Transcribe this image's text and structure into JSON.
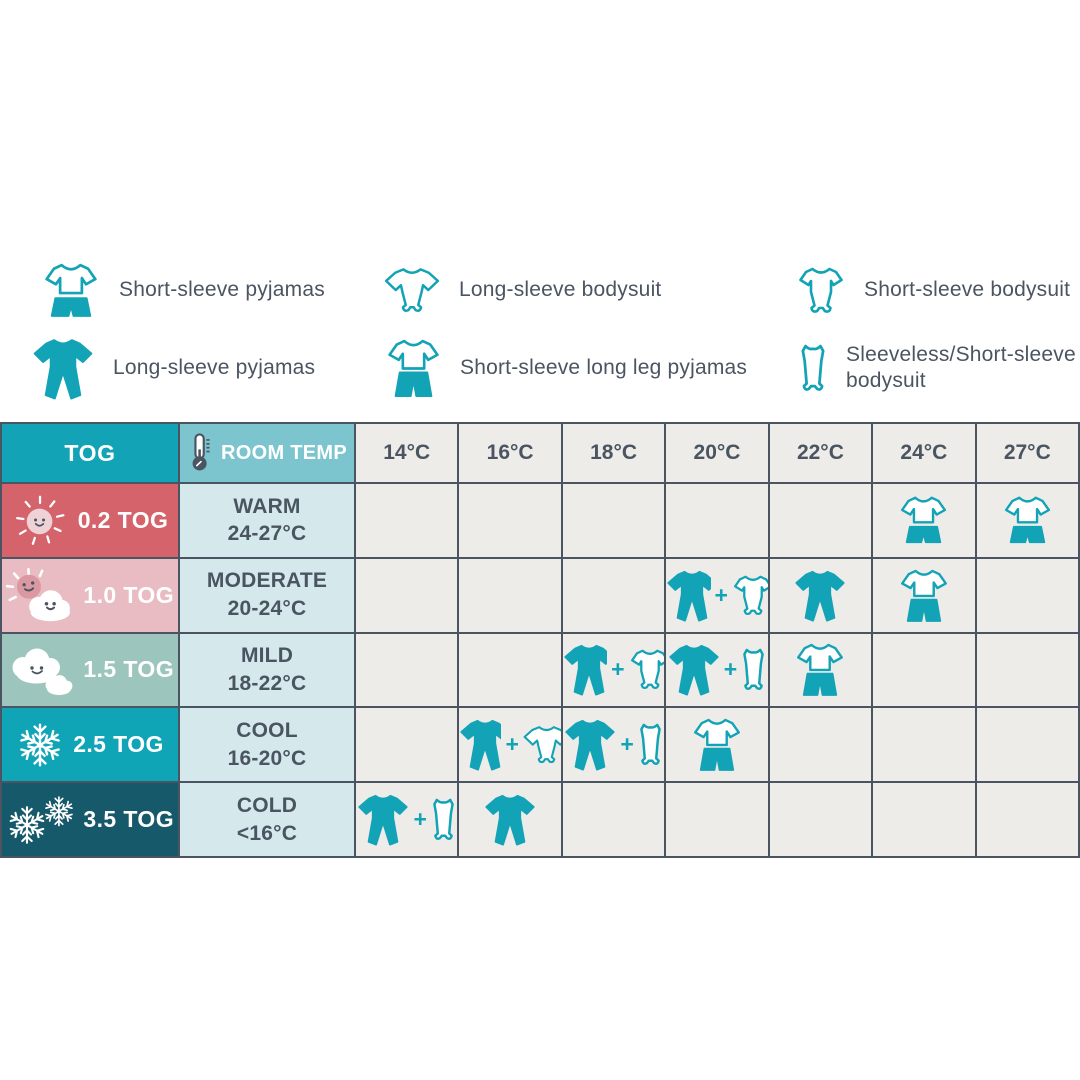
{
  "colors": {
    "teal": "#12a3b6",
    "dark_slate": "#4a5561",
    "text": "#4b5562",
    "cell_bg": "#edece8",
    "room_cell_bg": "#d5e9ed",
    "room_header_bg": "#7cc5cf",
    "tog_header_bg": "#12a3b6",
    "row_02_bg": "#d5636b",
    "row_10_bg": "#e8bcc2",
    "row_15_bg": "#9cc5bd",
    "row_25_bg": "#10a4b7",
    "row_35_bg": "#15596a",
    "sun_light": "#eed2d6",
    "sun_deep": "#db98a3"
  },
  "legend": {
    "items": [
      {
        "icon": "short-sleeve-pyjamas",
        "label": "Short-sleeve pyjamas"
      },
      {
        "icon": "long-sleeve-bodysuit",
        "label": "Long-sleeve bodysuit"
      },
      {
        "icon": "short-sleeve-bodysuit",
        "label": "Short-sleeve bodysuit"
      },
      {
        "icon": "long-sleeve-pyjamas",
        "label": "Long-sleeve pyjamas"
      },
      {
        "icon": "short-sleeve-long-leg-pyjamas",
        "label": "Short-sleeve long leg pyjamas"
      },
      {
        "icon": "sleeveless-bodysuit",
        "label": "Sleeveless/Short-sleeve bodysuit"
      }
    ]
  },
  "table": {
    "tog_header": "TOG",
    "room_temp_header": "ROOM TEMP",
    "plus": "+",
    "temp_columns": [
      "14°C",
      "16°C",
      "18°C",
      "20°C",
      "22°C",
      "24°C",
      "27°C"
    ],
    "rows": [
      {
        "tog": "0.2 TOG",
        "weather": "sun",
        "bg": "#d5636b",
        "room": [
          "WARM",
          "24-27°C"
        ],
        "cells": [
          [],
          [],
          [],
          [],
          [],
          [
            "short-sleeve-pyjamas"
          ],
          [
            "short-sleeve-pyjamas"
          ]
        ]
      },
      {
        "tog": "1.0 TOG",
        "weather": "sun-cloud",
        "bg": "#e8bcc2",
        "room": [
          "MODERATE",
          "20-24°C"
        ],
        "cells": [
          [],
          [],
          [],
          [
            "long-sleeve-pyjamas",
            "short-sleeve-bodysuit"
          ],
          [
            "long-sleeve-pyjamas"
          ],
          [
            "short-sleeve-long-leg-pyjamas"
          ],
          []
        ]
      },
      {
        "tog": "1.5 TOG",
        "weather": "clouds",
        "bg": "#9cc5bd",
        "room": [
          "MILD",
          "18-22°C"
        ],
        "cells": [
          [],
          [],
          [
            "long-sleeve-pyjamas",
            "short-sleeve-bodysuit"
          ],
          [
            "long-sleeve-pyjamas",
            "sleeveless-bodysuit"
          ],
          [
            "short-sleeve-long-leg-pyjamas"
          ],
          [],
          []
        ]
      },
      {
        "tog": "2.5 TOG",
        "weather": "snowflake",
        "bg": "#10a4b7",
        "room": [
          "COOL",
          "16-20°C"
        ],
        "cells": [
          [],
          [
            "long-sleeve-pyjamas",
            "long-sleeve-bodysuit"
          ],
          [
            "long-sleeve-pyjamas",
            "sleeveless-bodysuit"
          ],
          [
            "short-sleeve-long-leg-pyjamas"
          ],
          [],
          [],
          []
        ]
      },
      {
        "tog": "3.5 TOG",
        "weather": "snowflakes-double",
        "bg": "#15596a",
        "room": [
          "COLD",
          "<16°C"
        ],
        "cells": [
          [
            "long-sleeve-pyjamas",
            "sleeveless-bodysuit"
          ],
          [
            "long-sleeve-pyjamas"
          ],
          [],
          [],
          [],
          [],
          []
        ]
      }
    ]
  },
  "chart_data": {
    "type": "table",
    "title": "Baby sleepwear TOG and room temperature guide",
    "columns": [
      "TOG",
      "ROOM TEMP",
      "14°C",
      "16°C",
      "18°C",
      "20°C",
      "22°C",
      "24°C",
      "27°C"
    ],
    "rows": [
      {
        "TOG": "0.2 TOG",
        "ROOM TEMP": "WARM 24-27°C",
        "14°C": "",
        "16°C": "",
        "18°C": "",
        "20°C": "",
        "22°C": "",
        "24°C": "Short-sleeve pyjamas",
        "27°C": "Short-sleeve pyjamas"
      },
      {
        "TOG": "1.0 TOG",
        "ROOM TEMP": "MODERATE 20-24°C",
        "14°C": "",
        "16°C": "",
        "18°C": "",
        "20°C": "Long-sleeve pyjamas + Short-sleeve bodysuit",
        "22°C": "Long-sleeve pyjamas",
        "24°C": "Short-sleeve long leg pyjamas",
        "27°C": ""
      },
      {
        "TOG": "1.5 TOG",
        "ROOM TEMP": "MILD 18-22°C",
        "14°C": "",
        "16°C": "",
        "18°C": "Long-sleeve pyjamas + Short-sleeve bodysuit",
        "20°C": "Long-sleeve pyjamas + Sleeveless bodysuit",
        "22°C": "Short-sleeve long leg pyjamas",
        "24°C": "",
        "27°C": ""
      },
      {
        "TOG": "2.5 TOG",
        "ROOM TEMP": "COOL 16-20°C",
        "14°C": "",
        "16°C": "Long-sleeve pyjamas + Long-sleeve bodysuit",
        "18°C": "Long-sleeve pyjamas + Sleeveless bodysuit",
        "20°C": "Short-sleeve long leg pyjamas",
        "22°C": "",
        "24°C": "",
        "27°C": ""
      },
      {
        "TOG": "3.5 TOG",
        "ROOM TEMP": "COLD <16°C",
        "14°C": "Long-sleeve pyjamas + Sleeveless bodysuit",
        "16°C": "Long-sleeve pyjamas",
        "18°C": "",
        "20°C": "",
        "22°C": "",
        "24°C": "",
        "27°C": ""
      }
    ]
  }
}
